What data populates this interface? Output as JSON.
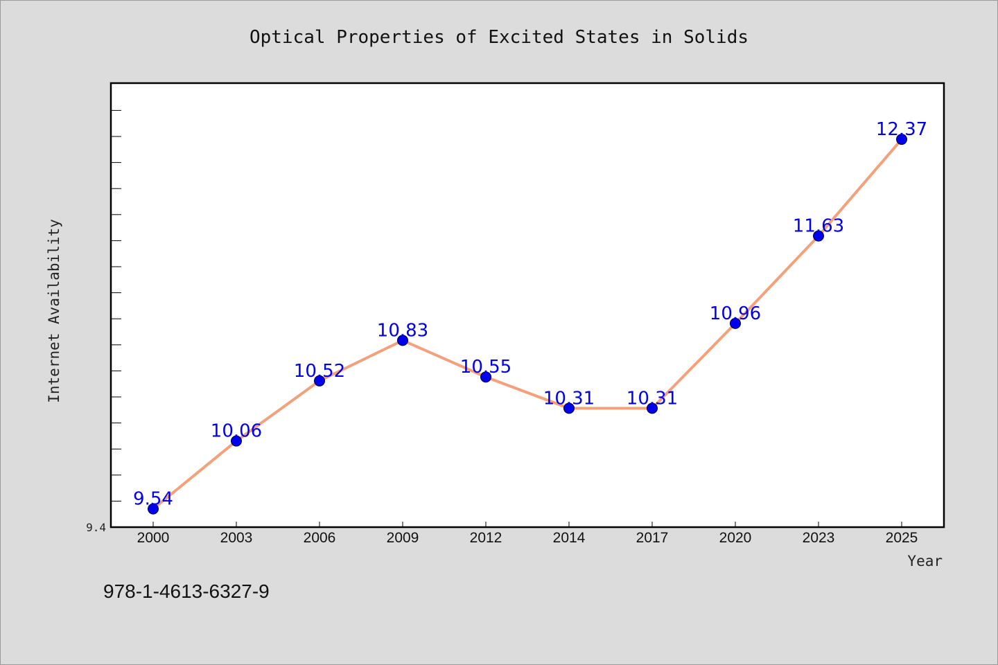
{
  "chart_data": {
    "type": "line",
    "title": "Optical Properties of Excited States in Solids",
    "xlabel": "Year",
    "ylabel": "Internet Availability",
    "categories": [
      "2000",
      "2003",
      "2006",
      "2009",
      "2012",
      "2014",
      "2017",
      "2020",
      "2023",
      "2025"
    ],
    "series": [
      {
        "values": [
          9.54,
          10.06,
          10.52,
          10.83,
          10.55,
          10.31,
          10.31,
          10.96,
          11.63,
          12.37
        ],
        "labels": [
          "9.54",
          "10.06",
          "10.52",
          "10.83",
          "10.55",
          "10.31",
          "10.31",
          "10.96",
          "11.63",
          "12.37"
        ],
        "line_color": "#f4a07a",
        "marker_color": "#0000ee"
      }
    ],
    "ylim": [
      9.4,
      12.8
    ],
    "ytick_labels": [
      "9.4"
    ],
    "grid": false,
    "legend": "none"
  },
  "footer_text": "978-1-4613-6327-9",
  "colors": {
    "background": "#dcdcdc",
    "plot_background": "#ffffff",
    "line": "#f4a07a",
    "markers": "#0000ee",
    "data_labels": "#0000ee"
  }
}
